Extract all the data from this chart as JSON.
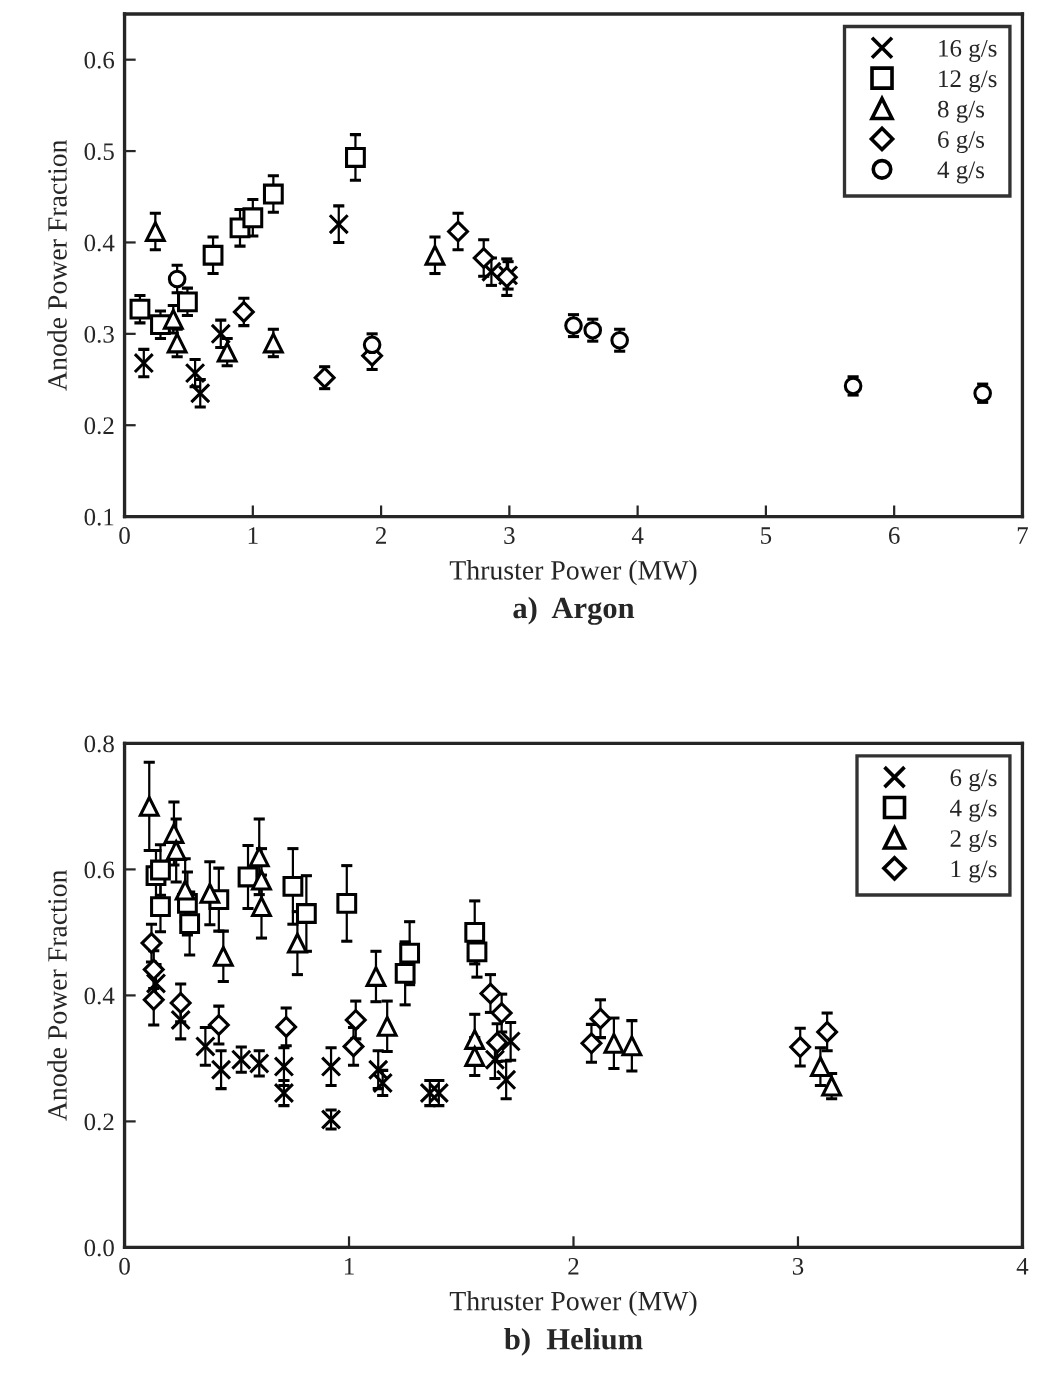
{
  "chart_data": [
    {
      "type": "scatter",
      "title": "a)  Argon",
      "xlabel": "Thruster Power (MW)",
      "ylabel": "Anode Power Fraction",
      "xlim": [
        0,
        7
      ],
      "ylim": [
        0.1,
        0.65
      ],
      "xticks": [
        0,
        1,
        2,
        3,
        4,
        5,
        6,
        7
      ],
      "yticks": [
        0.1,
        0.2,
        0.3,
        0.4,
        0.5,
        0.6
      ],
      "legend": "top right",
      "grid": false,
      "series": [
        {
          "name": "16 g/s",
          "marker": "cross",
          "color": "#000000",
          "x": [
            0.15,
            0.55,
            0.59,
            0.75,
            1.67,
            2.86,
            2.99
          ],
          "values": [
            0.268,
            0.257,
            0.235,
            0.3,
            0.42,
            0.368,
            0.364
          ],
          "errors": [
            0.015,
            0.015,
            0.015,
            0.015,
            0.02,
            0.015,
            0.015
          ]
        },
        {
          "name": "12 g/s",
          "marker": "square",
          "color": "#000000",
          "x": [
            0.12,
            0.28,
            0.49,
            0.69,
            0.9,
            1.0,
            1.16,
            1.8
          ],
          "values": [
            0.327,
            0.31,
            0.335,
            0.386,
            0.416,
            0.427,
            0.453,
            0.493
          ],
          "errors": [
            0.015,
            0.015,
            0.015,
            0.02,
            0.02,
            0.02,
            0.02,
            0.025
          ]
        },
        {
          "name": "8 g/s",
          "marker": "triangle",
          "color": "#000000",
          "x": [
            0.24,
            0.38,
            0.41,
            0.8,
            1.16,
            2.42
          ],
          "values": [
            0.412,
            0.316,
            0.29,
            0.28,
            0.29,
            0.386
          ],
          "errors": [
            0.02,
            0.015,
            0.015,
            0.015,
            0.015,
            0.02
          ]
        },
        {
          "name": "6 g/s",
          "marker": "diamond",
          "color": "#000000",
          "x": [
            0.93,
            1.56,
            1.93,
            2.6,
            2.8,
            2.98
          ],
          "values": [
            0.324,
            0.252,
            0.276,
            0.412,
            0.383,
            0.362
          ],
          "errors": [
            0.015,
            0.012,
            0.015,
            0.02,
            0.02,
            0.02
          ]
        },
        {
          "name": "4 g/s",
          "marker": "circle",
          "color": "#000000",
          "x": [
            0.41,
            1.93,
            3.5,
            3.65,
            3.86,
            5.68,
            6.69
          ],
          "values": [
            0.36,
            0.288,
            0.309,
            0.304,
            0.293,
            0.243,
            0.235
          ],
          "errors": [
            0.015,
            0.012,
            0.012,
            0.012,
            0.012,
            0.01,
            0.01
          ]
        }
      ]
    },
    {
      "type": "scatter",
      "title": "b)  Helium",
      "xlabel": "Thruster Power (MW)",
      "ylabel": "Anode Power Fraction",
      "xlim": [
        0,
        4
      ],
      "ylim": [
        0.0,
        0.8
      ],
      "xticks": [
        0,
        1,
        2,
        3,
        4
      ],
      "yticks": [
        {
          "value": 0.0,
          "label": "0.0"
        },
        {
          "value": 0.2,
          "label": "0.2"
        },
        {
          "value": 0.4,
          "label": "0.4"
        },
        {
          "value": 0.6,
          "label": "0.6"
        },
        {
          "value": 0.8,
          "label": "0.8"
        }
      ],
      "legend": "top right",
      "grid": false,
      "series": [
        {
          "name": "6 g/s",
          "marker": "cross",
          "color": "#000000",
          "x": [
            0.14,
            0.25,
            0.36,
            0.43,
            0.52,
            0.6,
            0.71,
            0.71,
            0.92,
            0.92,
            1.13,
            1.15,
            1.36,
            1.4,
            1.65,
            1.7,
            1.72
          ],
          "values": [
            0.419,
            0.361,
            0.319,
            0.282,
            0.298,
            0.292,
            0.287,
            0.245,
            0.203,
            0.287,
            0.282,
            0.261,
            0.245,
            0.245,
            0.298,
            0.266,
            0.327
          ],
          "errors": [
            0.03,
            0.03,
            0.03,
            0.03,
            0.02,
            0.02,
            0.03,
            0.02,
            0.015,
            0.03,
            0.03,
            0.02,
            0.02,
            0.02,
            0.03,
            0.03,
            0.03
          ]
        },
        {
          "name": "4 g/s",
          "marker": "square",
          "color": "#000000",
          "x": [
            0.14,
            0.16,
            0.16,
            0.28,
            0.29,
            0.42,
            0.55,
            0.75,
            0.81,
            0.99,
            1.25,
            1.27,
            1.56,
            1.57
          ],
          "values": [
            0.59,
            0.599,
            0.541,
            0.546,
            0.514,
            0.552,
            0.588,
            0.573,
            0.53,
            0.546,
            0.435,
            0.467,
            0.5,
            0.469
          ],
          "errors": [
            0.04,
            0.04,
            0.04,
            0.05,
            0.05,
            0.05,
            0.05,
            0.06,
            0.06,
            0.06,
            0.05,
            0.05,
            0.05,
            0.04
          ]
        },
        {
          "name": "2 g/s",
          "marker": "triangle",
          "color": "#000000",
          "x": [
            0.11,
            0.22,
            0.23,
            0.27,
            0.38,
            0.44,
            0.6,
            0.61,
            0.61,
            0.77,
            1.12,
            1.17,
            1.56,
            1.56,
            2.18,
            2.26,
            3.1,
            3.15
          ],
          "values": [
            0.7,
            0.657,
            0.63,
            0.567,
            0.562,
            0.462,
            0.62,
            0.583,
            0.541,
            0.483,
            0.43,
            0.351,
            0.33,
            0.303,
            0.324,
            0.32,
            0.287,
            0.256
          ],
          "errors": [
            0.07,
            0.05,
            0.05,
            0.05,
            0.05,
            0.04,
            0.06,
            0.05,
            0.05,
            0.05,
            0.04,
            0.04,
            0.04,
            0.03,
            0.04,
            0.04,
            0.03,
            0.02
          ]
        },
        {
          "name": "1 g/s",
          "marker": "diamond",
          "color": "#000000",
          "x": [
            0.12,
            0.13,
            0.13,
            0.25,
            0.42,
            0.72,
            1.03,
            1.02,
            1.63,
            1.68,
            1.66,
            2.12,
            2.08,
            3.01,
            3.13
          ],
          "values": [
            0.483,
            0.441,
            0.393,
            0.388,
            0.353,
            0.35,
            0.361,
            0.319,
            0.403,
            0.372,
            0.325,
            0.363,
            0.324,
            0.318,
            0.342
          ],
          "errors": [
            0.03,
            0.03,
            0.04,
            0.03,
            0.03,
            0.03,
            0.03,
            0.03,
            0.03,
            0.03,
            0.03,
            0.03,
            0.03,
            0.03,
            0.03
          ]
        }
      ]
    }
  ]
}
